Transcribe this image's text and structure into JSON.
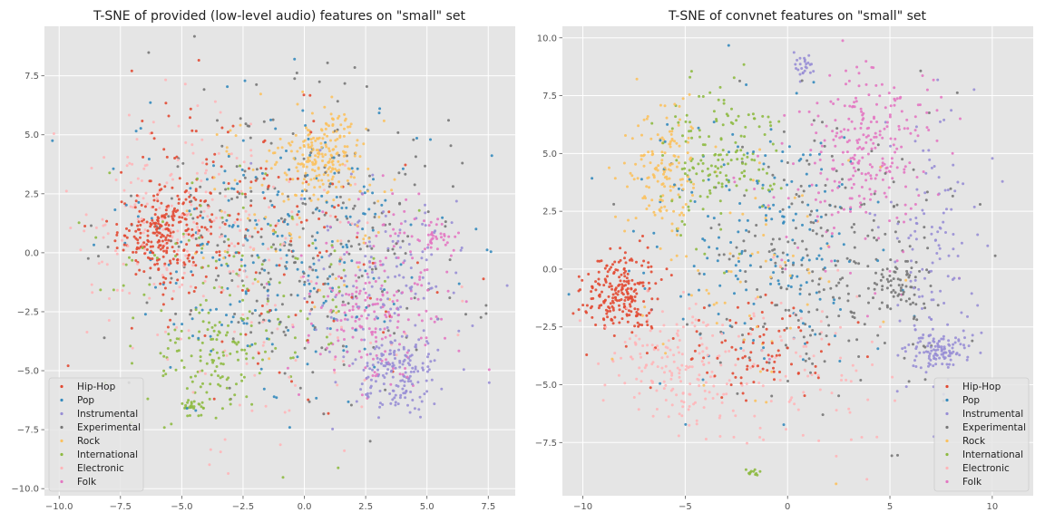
{
  "chart_data": [
    {
      "type": "scatter",
      "title": "T-SNE of provided (low-level audio) features on \"small\" set",
      "xlabel": "",
      "ylabel": "",
      "xlim": [
        -10.6,
        8.6
      ],
      "ylim": [
        -10.3,
        9.6
      ],
      "xticks": [
        -10.0,
        -7.5,
        -5.0,
        -2.5,
        0.0,
        2.5,
        5.0,
        7.5
      ],
      "xtick_labels": [
        "−10.0",
        "−7.5",
        "−5.0",
        "−2.5",
        "0.0",
        "2.5",
        "5.0",
        "7.5"
      ],
      "yticks": [
        -10.0,
        -7.5,
        -5.0,
        -2.5,
        0.0,
        2.5,
        5.0,
        7.5
      ],
      "ytick_labels": [
        "−10.0",
        "−7.5",
        "−5.0",
        "−2.5",
        "0.0",
        "2.5",
        "5.0",
        "7.5"
      ],
      "grid": true,
      "legend_position": "lower-left",
      "series": [
        {
          "name": "Hip-Hop",
          "color": "#e24a33",
          "clusters": [
            {
              "cx": -5.8,
              "cy": 0.8,
              "sx": 0.9,
              "sy": 0.9,
              "n": 240
            },
            {
              "cx": -3.2,
              "cy": 2.8,
              "sx": 2.0,
              "sy": 1.8,
              "n": 90
            },
            {
              "cx": -1.0,
              "cy": -1.0,
              "sx": 3.0,
              "sy": 3.0,
              "n": 80
            }
          ]
        },
        {
          "name": "Pop",
          "color": "#348abd",
          "clusters": [
            {
              "cx": -1.0,
              "cy": 0.5,
              "sx": 3.2,
              "sy": 3.2,
              "n": 260
            }
          ]
        },
        {
          "name": "Instrumental",
          "color": "#988ed5",
          "clusters": [
            {
              "cx": 3.8,
              "cy": -5.2,
              "sx": 0.8,
              "sy": 0.9,
              "n": 160
            },
            {
              "cx": 3.5,
              "cy": -1.5,
              "sx": 1.8,
              "sy": 2.0,
              "n": 140
            }
          ]
        },
        {
          "name": "Experimental",
          "color": "#777777",
          "clusters": [
            {
              "cx": -0.2,
              "cy": 0.8,
              "sx": 3.6,
              "sy": 3.2,
              "n": 260
            }
          ]
        },
        {
          "name": "Rock",
          "color": "#fbc15e",
          "clusters": [
            {
              "cx": 0.8,
              "cy": 4.2,
              "sx": 0.8,
              "sy": 0.8,
              "n": 200
            },
            {
              "cx": -0.5,
              "cy": 2.0,
              "sx": 2.4,
              "sy": 2.0,
              "n": 80
            }
          ]
        },
        {
          "name": "International",
          "color": "#8eba42",
          "clusters": [
            {
              "cx": -3.5,
              "cy": -4.6,
              "sx": 1.2,
              "sy": 1.1,
              "n": 110
            },
            {
              "cx": -4.6,
              "cy": -6.5,
              "sx": 0.3,
              "sy": 0.15,
              "n": 25
            },
            {
              "cx": -2.5,
              "cy": -1.0,
              "sx": 2.8,
              "sy": 2.8,
              "n": 120
            }
          ]
        },
        {
          "name": "Electronic",
          "color": "#ffb5b8",
          "clusters": [
            {
              "cx": -5.5,
              "cy": 1.5,
              "sx": 2.0,
              "sy": 2.0,
              "n": 160
            },
            {
              "cx": -1.5,
              "cy": -2.0,
              "sx": 3.2,
              "sy": 3.2,
              "n": 110
            }
          ]
        },
        {
          "name": "Folk",
          "color": "#e377c2",
          "clusters": [
            {
              "cx": 2.8,
              "cy": -2.8,
              "sx": 1.5,
              "sy": 1.6,
              "n": 160
            },
            {
              "cx": 5.3,
              "cy": 0.5,
              "sx": 0.4,
              "sy": 0.3,
              "n": 30
            },
            {
              "cx": 3.5,
              "cy": 0.2,
              "sx": 1.6,
              "sy": 1.5,
              "n": 60
            }
          ]
        }
      ]
    },
    {
      "type": "scatter",
      "title": "T-SNE of convnet features on \"small\" set",
      "xlabel": "",
      "ylabel": "",
      "xlim": [
        -11.0,
        12.0
      ],
      "ylim": [
        -9.8,
        10.5
      ],
      "xticks": [
        -10,
        -5,
        0,
        5,
        10
      ],
      "xtick_labels": [
        "−10",
        "−5",
        "0",
        "5",
        "10"
      ],
      "yticks": [
        -7.5,
        -5.0,
        -2.5,
        0.0,
        2.5,
        5.0,
        7.5,
        10.0
      ],
      "ytick_labels": [
        "−7.5",
        "−5.0",
        "−2.5",
        "0.0",
        "2.5",
        "5.0",
        "7.5",
        "10.0"
      ],
      "grid": true,
      "legend_position": "lower-right",
      "series": [
        {
          "name": "Hip-Hop",
          "color": "#e24a33",
          "clusters": [
            {
              "cx": -8.2,
              "cy": -1.0,
              "sx": 0.9,
              "sy": 0.9,
              "n": 230
            },
            {
              "cx": -2.0,
              "cy": -3.5,
              "sx": 2.2,
              "sy": 1.2,
              "n": 90
            }
          ]
        },
        {
          "name": "Pop",
          "color": "#348abd",
          "clusters": [
            {
              "cx": -1.5,
              "cy": 1.5,
              "sx": 3.0,
              "sy": 2.6,
              "n": 200
            }
          ]
        },
        {
          "name": "Instrumental",
          "color": "#988ed5",
          "clusters": [
            {
              "cx": 7.3,
              "cy": -3.6,
              "sx": 0.8,
              "sy": 0.4,
              "n": 110
            },
            {
              "cx": 7.0,
              "cy": 1.0,
              "sx": 1.2,
              "sy": 3.0,
              "n": 120
            },
            {
              "cx": 0.8,
              "cy": 8.8,
              "sx": 0.25,
              "sy": 0.3,
              "n": 25
            }
          ]
        },
        {
          "name": "Experimental",
          "color": "#777777",
          "clusters": [
            {
              "cx": 2.0,
              "cy": 0.0,
              "sx": 3.2,
              "sy": 3.0,
              "n": 240
            },
            {
              "cx": 5.5,
              "cy": -0.8,
              "sx": 0.8,
              "sy": 0.6,
              "n": 60
            }
          ]
        },
        {
          "name": "Rock",
          "color": "#fbc15e",
          "clusters": [
            {
              "cx": -6.0,
              "cy": 4.2,
              "sx": 0.9,
              "sy": 1.5,
              "n": 150
            },
            {
              "cx": -2.0,
              "cy": 0.0,
              "sx": 3.0,
              "sy": 3.0,
              "n": 70
            }
          ]
        },
        {
          "name": "International",
          "color": "#8eba42",
          "clusters": [
            {
              "cx": -3.5,
              "cy": 4.8,
              "sx": 1.4,
              "sy": 1.6,
              "n": 160
            },
            {
              "cx": -1.7,
              "cy": -8.8,
              "sx": 0.2,
              "sy": 0.08,
              "n": 12
            }
          ]
        },
        {
          "name": "Electronic",
          "color": "#ffb5b8",
          "clusters": [
            {
              "cx": -5.5,
              "cy": -4.2,
              "sx": 1.8,
              "sy": 1.3,
              "n": 170
            },
            {
              "cx": 0.0,
              "cy": -4.5,
              "sx": 2.5,
              "sy": 1.8,
              "n": 90
            }
          ]
        },
        {
          "name": "Folk",
          "color": "#e377c2",
          "clusters": [
            {
              "cx": 4.0,
              "cy": 6.0,
              "sx": 1.5,
              "sy": 1.5,
              "n": 200
            },
            {
              "cx": 3.0,
              "cy": 3.0,
              "sx": 2.4,
              "sy": 2.4,
              "n": 70
            }
          ]
        }
      ]
    }
  ]
}
